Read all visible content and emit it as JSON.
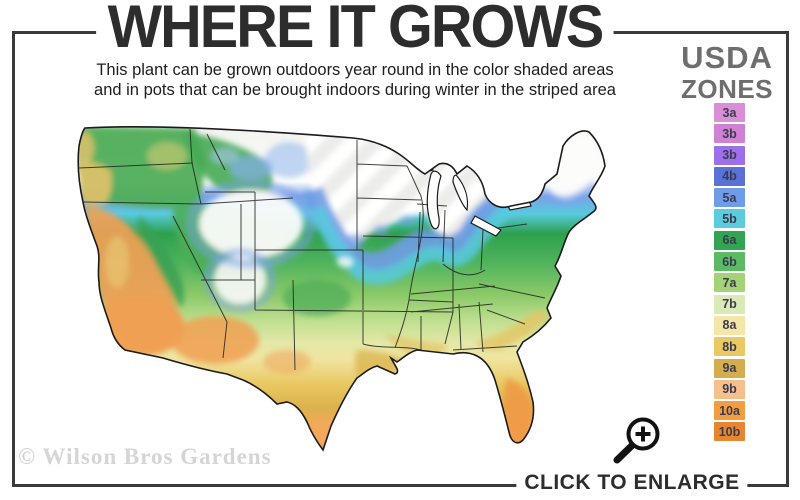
{
  "header": {
    "title": "WHERE IT GROWS",
    "subtitle_line1": "This plant can be grown outdoors year round in the color shaded areas",
    "subtitle_line2": "and in pots that can be brought indoors during winter in the striped area"
  },
  "legend": {
    "title_line1": "USDA",
    "title_line2": "ZONES",
    "zones": [
      {
        "label": "3a",
        "color": "#d88fd8"
      },
      {
        "label": "3b",
        "color": "#cf82d4"
      },
      {
        "label": "3b",
        "color": "#9d6fe8"
      },
      {
        "label": "4b",
        "color": "#5a72d8"
      },
      {
        "label": "5a",
        "color": "#6f9ce8"
      },
      {
        "label": "5b",
        "color": "#59cdde"
      },
      {
        "label": "6a",
        "color": "#33a452"
      },
      {
        "label": "6b",
        "color": "#5cb964"
      },
      {
        "label": "7a",
        "color": "#a4d377"
      },
      {
        "label": "7b",
        "color": "#d9eab7"
      },
      {
        "label": "8a",
        "color": "#f3e6a6"
      },
      {
        "label": "8b",
        "color": "#ebc962"
      },
      {
        "label": "9a",
        "color": "#d4ae4e"
      },
      {
        "label": "9b",
        "color": "#f6c08d"
      },
      {
        "label": "10a",
        "color": "#f39d3f"
      },
      {
        "label": "10b",
        "color": "#e8862f"
      }
    ]
  },
  "map": {
    "description": "USDA hardiness zone color-shaded map of the continental United States"
  },
  "footer": {
    "watermark": "© Wilson Bros Gardens",
    "click_to_enlarge": "CLICK TO ENLARGE"
  }
}
